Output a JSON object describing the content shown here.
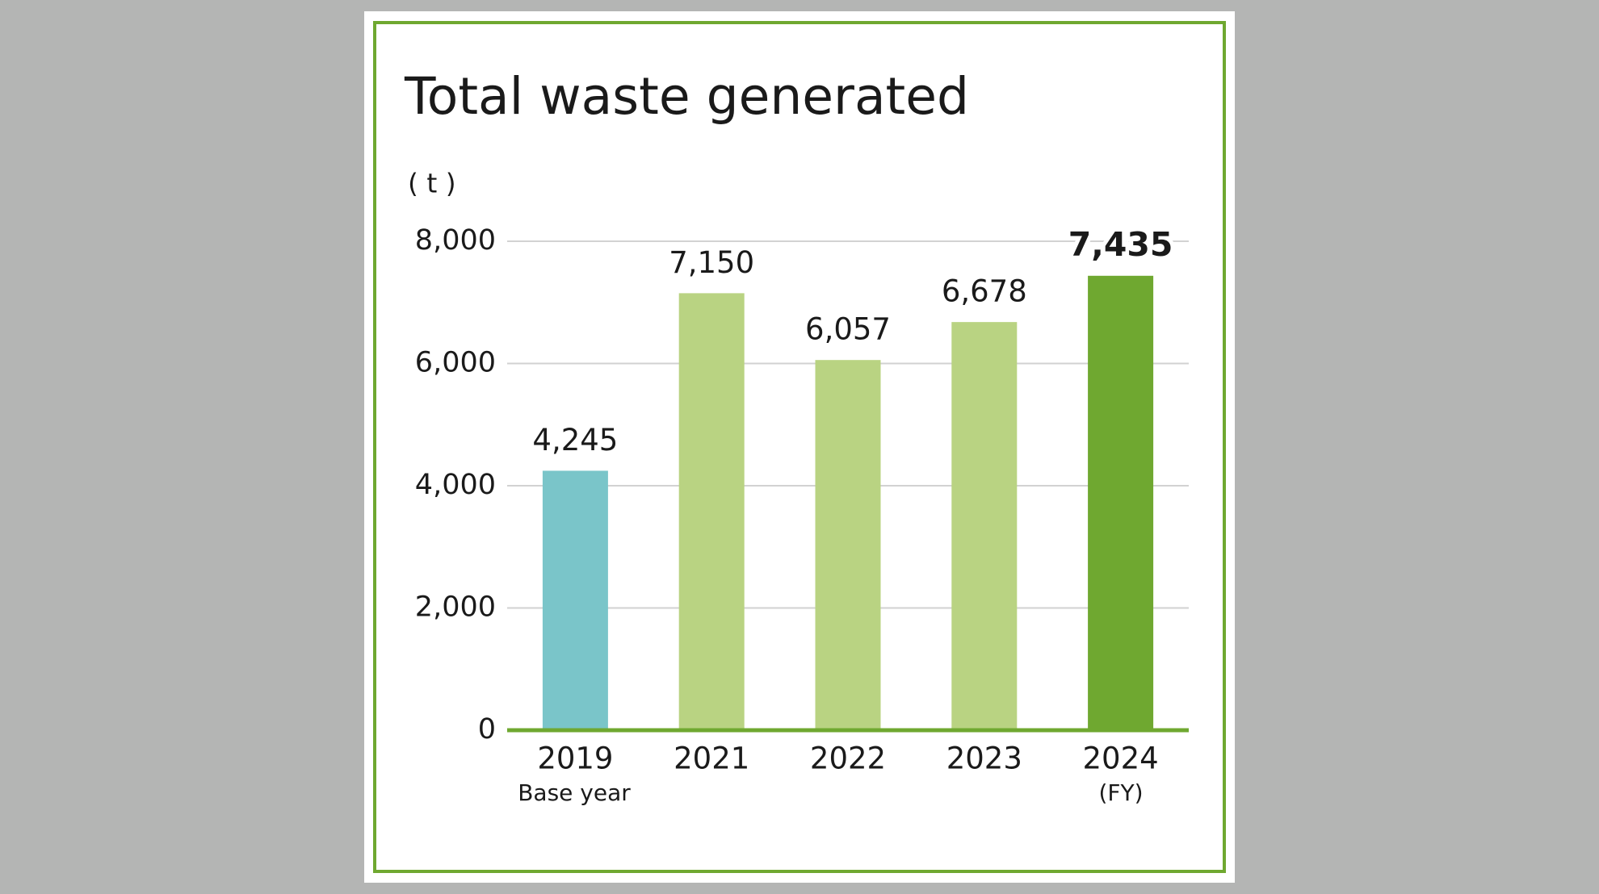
{
  "chart_data": {
    "type": "bar",
    "title": "Total waste generated",
    "y_label": "( t )",
    "x_label": "(FY)",
    "categories": [
      "2019",
      "2021",
      "2022",
      "2023",
      "2024"
    ],
    "annotation": "Base year",
    "values": [
      4245,
      7150,
      6057,
      6678,
      7435
    ],
    "value_labels": [
      "4,245",
      "7,150",
      "6,057",
      "6,678",
      "7,435"
    ],
    "colors": [
      "#7ac5c9",
      "#b9d382",
      "#b9d382",
      "#b9d382",
      "#6fa830"
    ],
    "highlight": 4,
    "ylim": [
      0,
      8000
    ],
    "yticks": [
      0,
      {
        "value": 2000,
        "label": "2,000"
      },
      {
        "value": 4000,
        "label": "4,000"
      },
      {
        "value": 6000,
        "label": "6,000"
      },
      {
        "value": 8000,
        "label": "8,000"
      }
    ],
    "grid": true
  }
}
